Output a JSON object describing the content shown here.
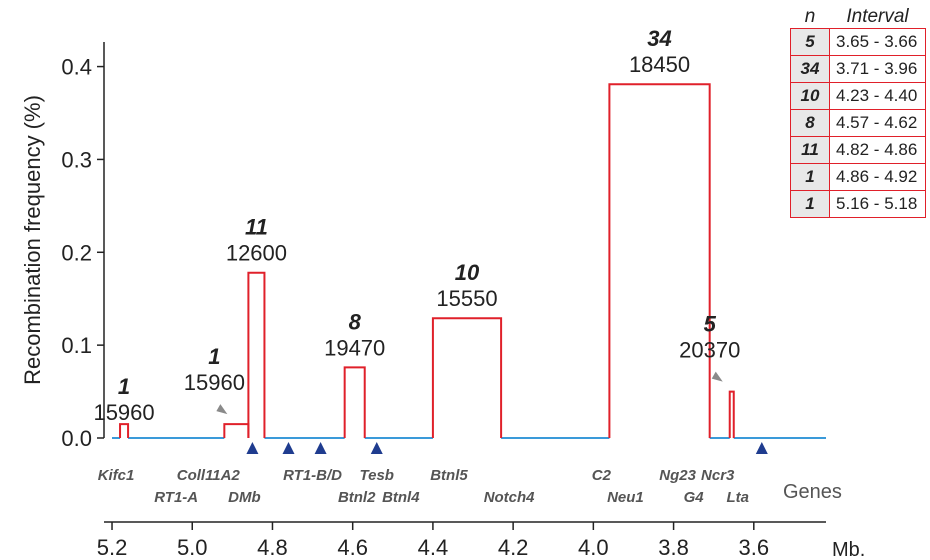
{
  "chart_data": {
    "type": "bar",
    "ylabel": "Recombination frequency (%)",
    "xunit": "Mb.",
    "xlim": [
      5.22,
      3.42
    ],
    "ylim": [
      0,
      0.42
    ],
    "yticks": [
      "0.0",
      "0.1",
      "0.2",
      "0.3",
      "0.4"
    ],
    "xticks": [
      "5.2",
      "5.0",
      "4.8",
      "4.6",
      "4.4",
      "4.2",
      "4.0",
      "3.8",
      "3.6"
    ],
    "colors": {
      "bars": "#e0202a",
      "baseline": "#3a9ad9",
      "markers": "#1f3c8f",
      "arrows": "#8a8a8a"
    },
    "intervals": [
      {
        "x_start": 5.18,
        "x_end": 5.16,
        "value": 0.015,
        "n": "1",
        "label": "15960",
        "arrow": false
      },
      {
        "x_start": 4.92,
        "x_end": 4.86,
        "value": 0.015,
        "n": "1",
        "label": "15960",
        "arrow": true
      },
      {
        "x_start": 4.86,
        "x_end": 4.82,
        "value": 0.178,
        "n": "11",
        "label": "12600",
        "arrow": false
      },
      {
        "x_start": 4.62,
        "x_end": 4.57,
        "value": 0.076,
        "n": "8",
        "label": "19470",
        "arrow": false
      },
      {
        "x_start": 4.4,
        "x_end": 4.23,
        "value": 0.129,
        "n": "10",
        "label": "15550",
        "arrow": false
      },
      {
        "x_start": 3.96,
        "x_end": 3.71,
        "value": 0.381,
        "n": "34",
        "label": "18450",
        "arrow": false
      },
      {
        "x_start": 3.66,
        "x_end": 3.65,
        "value": 0.05,
        "n": "5",
        "label": "20370",
        "arrow": true
      }
    ],
    "markers": [
      4.85,
      4.76,
      4.68,
      4.54,
      3.58
    ],
    "genes_title": "Genes",
    "genes": [
      {
        "name": "Kifc1",
        "x": 5.19,
        "row": 1
      },
      {
        "name": "RT1-A",
        "x": 5.04,
        "row": 2
      },
      {
        "name": "Coll11A2",
        "x": 4.96,
        "row": 1
      },
      {
        "name": "DMb",
        "x": 4.87,
        "row": 2
      },
      {
        "name": "RT1-B/D",
        "x": 4.7,
        "row": 1
      },
      {
        "name": "Tesb",
        "x": 4.54,
        "row": 1
      },
      {
        "name": "Btnl2",
        "x": 4.59,
        "row": 2
      },
      {
        "name": "Btnl4",
        "x": 4.48,
        "row": 2
      },
      {
        "name": "Btnl5",
        "x": 4.36,
        "row": 1
      },
      {
        "name": "Notch4",
        "x": 4.21,
        "row": 2
      },
      {
        "name": "C2",
        "x": 3.98,
        "row": 1
      },
      {
        "name": "Neu1",
        "x": 3.92,
        "row": 2
      },
      {
        "name": "Ng23",
        "x": 3.79,
        "row": 1
      },
      {
        "name": "G4",
        "x": 3.75,
        "row": 2
      },
      {
        "name": "Ncr3",
        "x": 3.69,
        "row": 1
      },
      {
        "name": "Lta",
        "x": 3.64,
        "row": 2
      }
    ]
  },
  "table": {
    "headers": [
      "n",
      "Interval"
    ],
    "rows": [
      {
        "n": "5",
        "interval": "3.65 - 3.66"
      },
      {
        "n": "34",
        "interval": "3.71 - 3.96"
      },
      {
        "n": "10",
        "interval": "4.23 - 4.40"
      },
      {
        "n": "8",
        "interval": "4.57 - 4.62"
      },
      {
        "n": "11",
        "interval": "4.82 - 4.86"
      },
      {
        "n": "1",
        "interval": "4.86 - 4.92"
      },
      {
        "n": "1",
        "interval": "5.16 - 5.18"
      }
    ]
  }
}
